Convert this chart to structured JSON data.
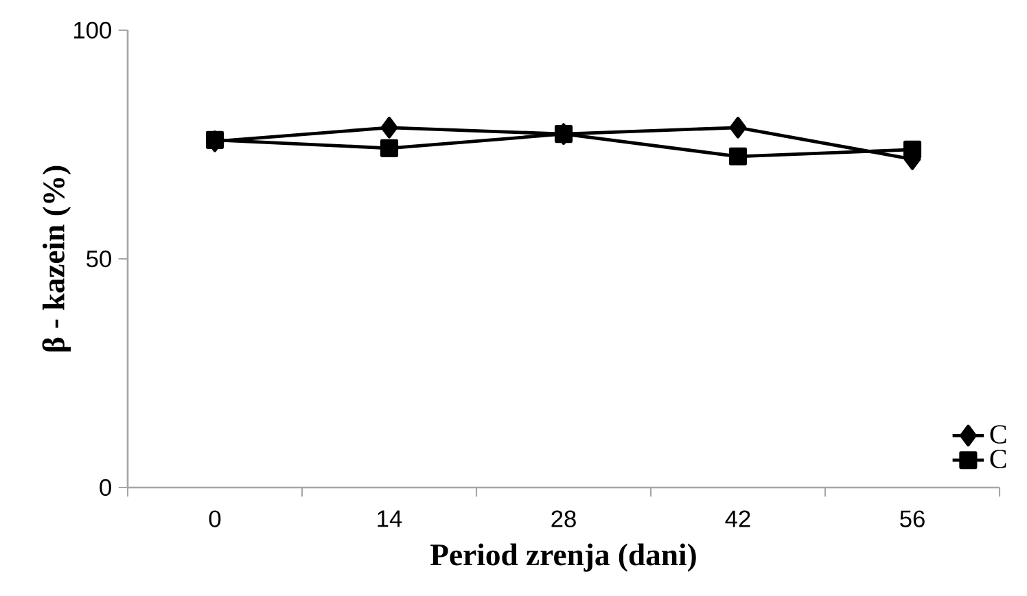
{
  "chart_data": {
    "type": "line",
    "xlabel": "Period zrenja (dani)",
    "ylabel": "β - kazein (%)",
    "categories": [
      "0",
      "14",
      "28",
      "42",
      "56"
    ],
    "series": [
      {
        "name": "C",
        "color": "#000000",
        "marker": "diamond",
        "values": [
          75.7,
          78.7,
          77.3,
          78.7,
          71.8
        ]
      },
      {
        "name": "C",
        "color": "#000000",
        "marker": "square",
        "values": [
          76,
          74.2,
          77.3,
          72.4,
          73.9
        ]
      }
    ],
    "ylim": [
      0,
      100
    ],
    "yticks": [
      0,
      50,
      100
    ],
    "legend": "bottom right",
    "grid": false,
    "line_style": "solid"
  }
}
